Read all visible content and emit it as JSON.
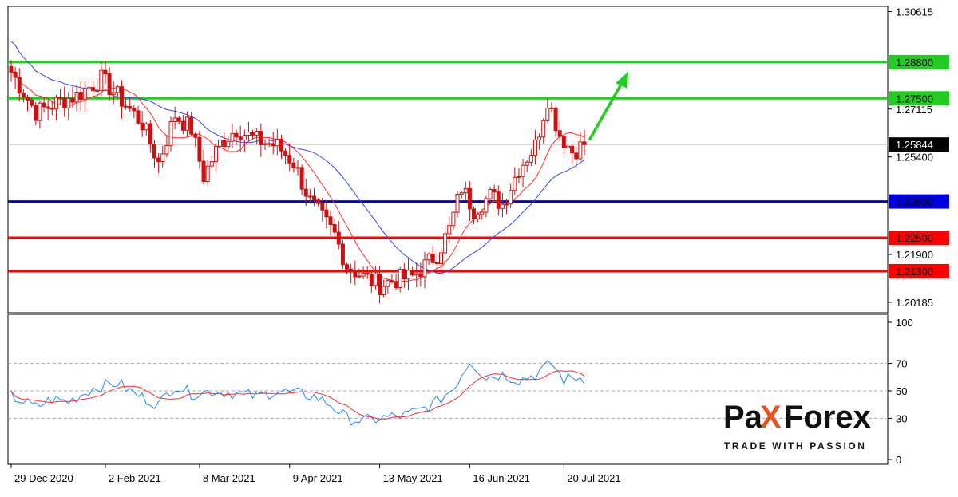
{
  "chart_data": {
    "type": "candlestick",
    "colors": {
      "background": "#ffffff",
      "candle": "#cc1111",
      "ma_fast": "#ff2a2a",
      "ma_slow": "#3344ff",
      "support_resistance_green": "#22cc22",
      "level_blue": "#0000dd",
      "level_red": "#ff0000",
      "rsi_line": "#2288ff",
      "rsi_signal": "#ff2a2a",
      "arrow": "#22cc22"
    },
    "price_axis": {
      "ylim": [
        1.1981,
        1.308
      ],
      "tick_labels": [
        "1.30615",
        "1.27115",
        "1.25400",
        "1.21900",
        "1.20185"
      ],
      "tick_values": [
        1.30615,
        1.27115,
        1.254,
        1.219,
        1.20185
      ]
    },
    "current_price": {
      "label": "1.25844",
      "value": 1.25844
    },
    "levels": [
      {
        "label": "1.28800",
        "value": 1.288,
        "color": "#22cc22"
      },
      {
        "label": "1.27500",
        "value": 1.275,
        "color": "#22cc22"
      },
      {
        "label": "1.23800",
        "value": 1.238,
        "color": "#0000dd"
      },
      {
        "label": "1.22500",
        "value": 1.225,
        "color": "#ff0000"
      },
      {
        "label": "1.21300",
        "value": 1.213,
        "color": "#ff0000"
      }
    ],
    "date_labels": [
      "29 Dec 2020",
      "2 Feb 2021",
      "8 Mar 2021",
      "9 Apr 2021",
      "13 May 2021",
      "16 Jun 2021",
      "20 Jul 2021"
    ],
    "close_anchors": [
      [
        0,
        1.2845
      ],
      [
        6,
        1.27
      ],
      [
        12,
        1.274
      ],
      [
        16,
        1.276
      ],
      [
        22,
        1.282
      ],
      [
        26,
        1.276
      ],
      [
        32,
        1.266
      ],
      [
        36,
        1.252
      ],
      [
        40,
        1.269
      ],
      [
        44,
        1.264
      ],
      [
        47,
        1.247
      ],
      [
        51,
        1.259
      ],
      [
        55,
        1.264
      ],
      [
        60,
        1.26
      ],
      [
        65,
        1.258
      ],
      [
        69,
        1.252
      ],
      [
        73,
        1.238
      ],
      [
        76,
        1.232
      ],
      [
        79,
        1.226
      ],
      [
        82,
        1.215
      ],
      [
        86,
        1.211
      ],
      [
        90,
        1.208
      ],
      [
        94,
        1.21
      ],
      [
        98,
        1.211
      ],
      [
        101,
        1.215
      ],
      [
        104,
        1.219
      ],
      [
        107,
        1.228
      ],
      [
        110,
        1.243
      ],
      [
        113,
        1.235
      ],
      [
        117,
        1.24
      ],
      [
        120,
        1.237
      ],
      [
        124,
        1.25
      ],
      [
        128,
        1.258
      ],
      [
        131,
        1.275
      ],
      [
        134,
        1.262
      ],
      [
        137,
        1.256
      ],
      [
        140,
        1.2584
      ]
    ],
    "rsi_panel": {
      "ylim": [
        0,
        100
      ],
      "tick_labels": [
        "100",
        "70",
        "50",
        "30",
        "0"
      ],
      "tick_values": [
        100,
        70,
        50,
        30,
        0
      ],
      "dashed_levels": [
        70,
        50,
        30
      ],
      "rsi_anchors": [
        [
          0,
          46
        ],
        [
          6,
          38
        ],
        [
          10,
          44
        ],
        [
          14,
          42
        ],
        [
          20,
          52
        ],
        [
          26,
          56
        ],
        [
          30,
          48
        ],
        [
          36,
          40
        ],
        [
          40,
          54
        ],
        [
          44,
          48
        ],
        [
          50,
          50
        ],
        [
          55,
          48
        ],
        [
          60,
          46
        ],
        [
          65,
          50
        ],
        [
          70,
          48
        ],
        [
          74,
          46
        ],
        [
          78,
          40
        ],
        [
          82,
          30
        ],
        [
          86,
          28
        ],
        [
          90,
          30
        ],
        [
          96,
          32
        ],
        [
          100,
          36
        ],
        [
          104,
          42
        ],
        [
          108,
          52
        ],
        [
          112,
          72
        ],
        [
          116,
          60
        ],
        [
          120,
          62
        ],
        [
          124,
          58
        ],
        [
          128,
          62
        ],
        [
          132,
          70
        ],
        [
          135,
          58
        ],
        [
          138,
          60
        ],
        [
          140,
          59
        ]
      ]
    }
  },
  "brand": {
    "name_part1": "Pa",
    "name_x": "X",
    "name_part2": "Forex",
    "tagline": "TRADE WITH PASSION"
  }
}
